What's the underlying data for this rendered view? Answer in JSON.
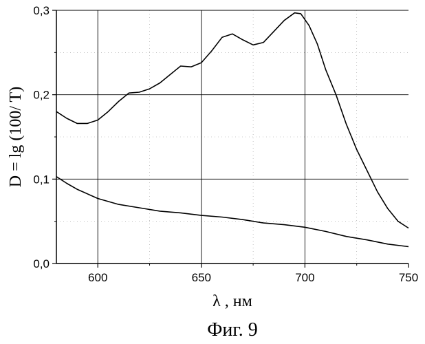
{
  "chart_data": {
    "type": "line",
    "caption": "Фиг. 9",
    "xlabel": "λ , нм",
    "ylabel": "D = lg (100/ T)",
    "xlim": [
      580,
      750
    ],
    "ylim": [
      0.0,
      0.3
    ],
    "x_ticks": [
      {
        "value": 600,
        "label": "600"
      },
      {
        "value": 650,
        "label": "650"
      },
      {
        "value": 700,
        "label": "700"
      },
      {
        "value": 750,
        "label": "750"
      }
    ],
    "y_ticks": [
      {
        "value": 0.0,
        "label": "0,0"
      },
      {
        "value": 0.1,
        "label": "0,1"
      },
      {
        "value": 0.2,
        "label": "0,2"
      },
      {
        "value": 0.3,
        "label": "0,3"
      }
    ],
    "grid": true,
    "series": [
      {
        "color": "#000000",
        "x": [
          580,
          585,
          590,
          595,
          600,
          605,
          610,
          615,
          620,
          625,
          630,
          635,
          640,
          645,
          650,
          655,
          660,
          665,
          670,
          675,
          680,
          685,
          690,
          695,
          698,
          702,
          706,
          710,
          715,
          720,
          725,
          730,
          735,
          740,
          745,
          750
        ],
        "y": [
          0.18,
          0.172,
          0.166,
          0.166,
          0.17,
          0.18,
          0.192,
          0.202,
          0.203,
          0.207,
          0.214,
          0.224,
          0.234,
          0.233,
          0.238,
          0.252,
          0.268,
          0.272,
          0.265,
          0.259,
          0.262,
          0.275,
          0.288,
          0.297,
          0.296,
          0.282,
          0.26,
          0.23,
          0.2,
          0.165,
          0.135,
          0.11,
          0.085,
          0.065,
          0.05,
          0.042
        ]
      },
      {
        "color": "#000000",
        "x": [
          580,
          585,
          590,
          600,
          610,
          620,
          630,
          640,
          650,
          660,
          670,
          680,
          690,
          700,
          710,
          720,
          730,
          740,
          750
        ],
        "y": [
          0.103,
          0.095,
          0.088,
          0.077,
          0.07,
          0.066,
          0.062,
          0.06,
          0.057,
          0.055,
          0.052,
          0.048,
          0.046,
          0.043,
          0.038,
          0.032,
          0.028,
          0.023,
          0.02
        ]
      }
    ]
  }
}
